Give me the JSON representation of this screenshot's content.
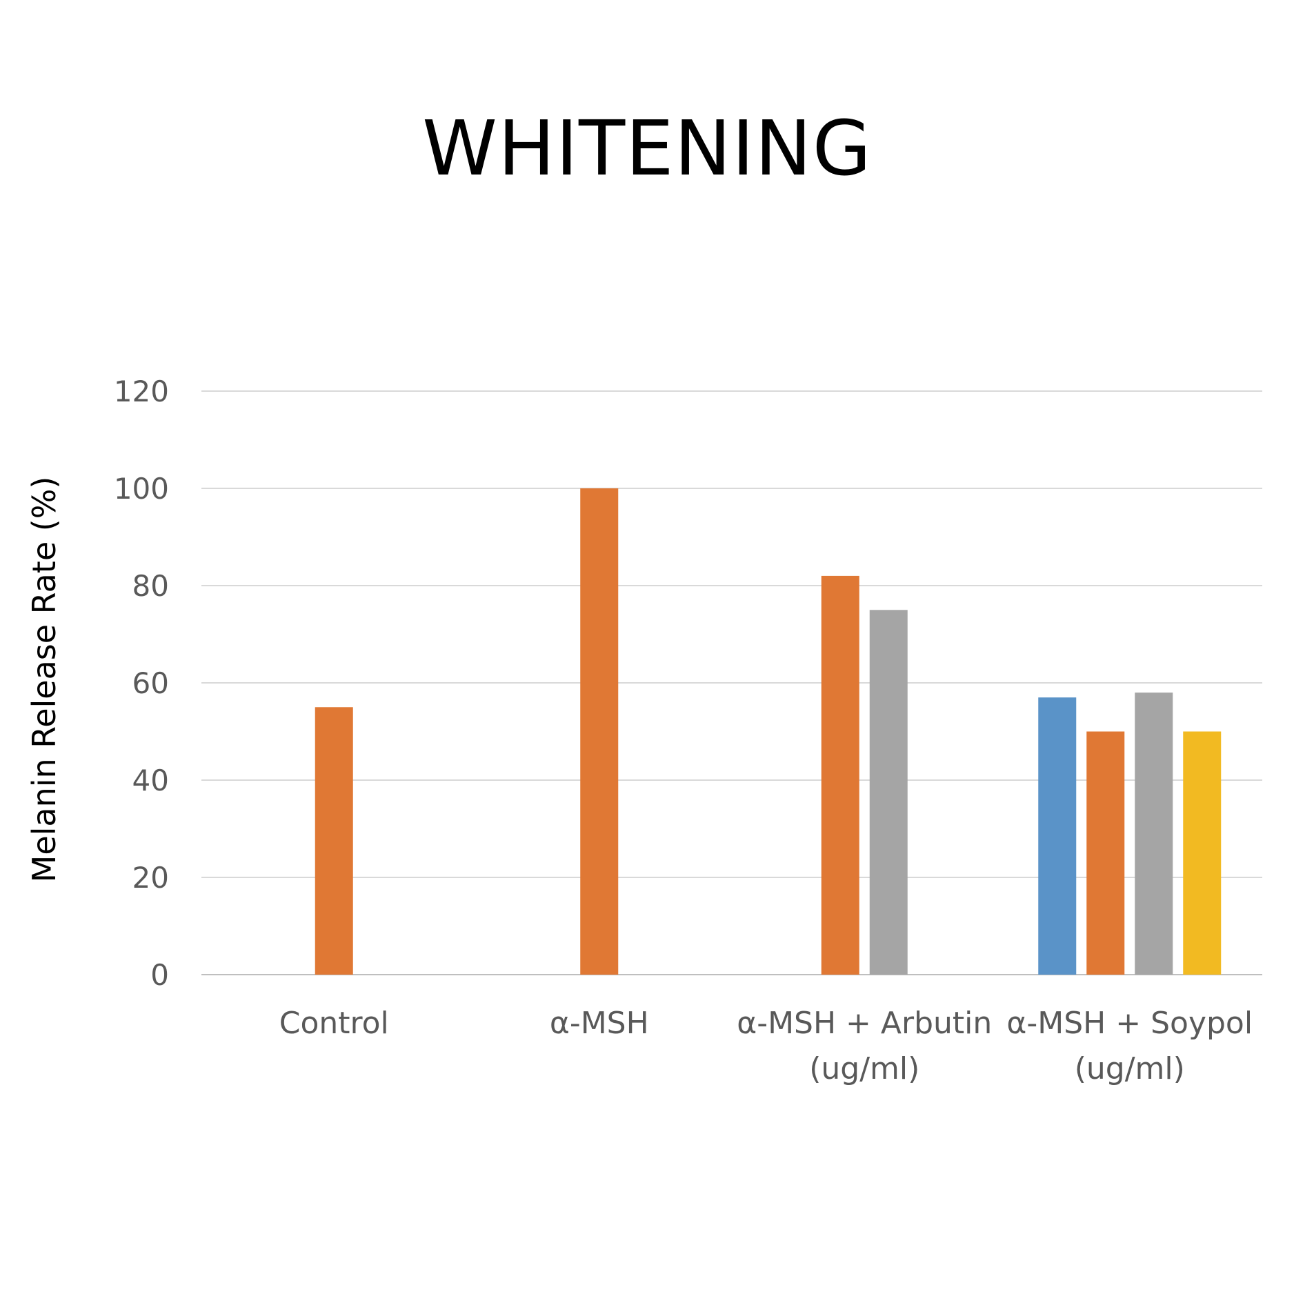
{
  "chart_data": {
    "type": "bar",
    "title": "WHITENING",
    "ylabel": "Melanin Release Rate (%)",
    "xlabel": "",
    "ylim": [
      0,
      120
    ],
    "yticks": [
      0,
      20,
      40,
      60,
      80,
      100,
      120
    ],
    "grid": true,
    "legend": "none",
    "groups": [
      {
        "label_lines": [
          "Control"
        ],
        "bars": [
          {
            "value": 55,
            "color": "#E07834"
          }
        ]
      },
      {
        "label_lines": [
          "α-MSH"
        ],
        "bars": [
          {
            "value": 100,
            "color": "#E07834"
          }
        ]
      },
      {
        "label_lines": [
          "α-MSH + Arbutin",
          "(ug/ml)"
        ],
        "bars": [
          {
            "value": 82,
            "color": "#E07834"
          },
          {
            "value": 75,
            "color": "#A5A5A5"
          }
        ]
      },
      {
        "label_lines": [
          "α-MSH + Soypol",
          "(ug/ml)"
        ],
        "bars": [
          {
            "value": 57,
            "color": "#5A93C8"
          },
          {
            "value": 50,
            "color": "#E07834"
          },
          {
            "value": 58,
            "color": "#A5A5A5"
          },
          {
            "value": 50,
            "color": "#F2BA22"
          }
        ]
      }
    ]
  }
}
